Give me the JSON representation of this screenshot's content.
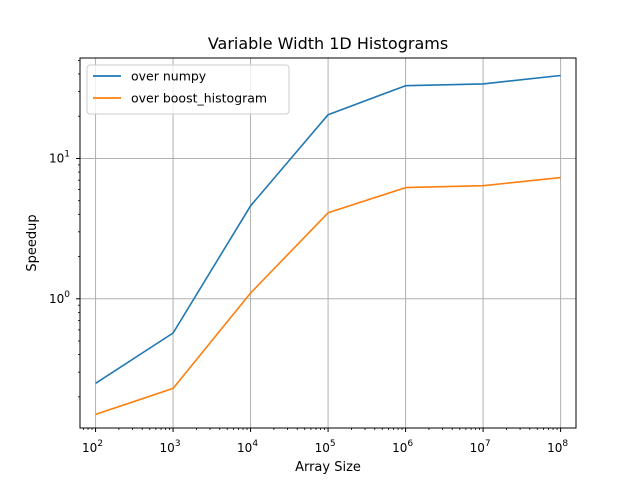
{
  "chart_data": {
    "type": "line",
    "title": "Variable Width 1D Histograms",
    "xlabel": "Array Size",
    "ylabel": "Speedup",
    "x_scale": "log",
    "y_scale": "log",
    "x": [
      100,
      1000,
      10000,
      100000,
      1000000,
      10000000,
      100000000
    ],
    "x_tick_labels": [
      {
        "base": "10",
        "exp": "2"
      },
      {
        "base": "10",
        "exp": "3"
      },
      {
        "base": "10",
        "exp": "4"
      },
      {
        "base": "10",
        "exp": "5"
      },
      {
        "base": "10",
        "exp": "6"
      },
      {
        "base": "10",
        "exp": "7"
      },
      {
        "base": "10",
        "exp": "8"
      }
    ],
    "y_tick_labels": [
      {
        "value": 1,
        "base": "10",
        "exp": "0"
      },
      {
        "value": 10,
        "base": "10",
        "exp": "1"
      }
    ],
    "xlim": [
      63,
      158000000
    ],
    "ylim": [
      0.12,
      52
    ],
    "grid": true,
    "legend_position": "top-left",
    "series": [
      {
        "name": "over numpy",
        "color": "#1f77b4",
        "values": [
          0.25,
          0.57,
          4.6,
          20.5,
          33,
          34,
          39
        ]
      },
      {
        "name": "over boost_histogram",
        "color": "#ff7f0e",
        "values": [
          0.15,
          0.23,
          1.1,
          4.1,
          6.2,
          6.4,
          7.3
        ]
      }
    ]
  }
}
